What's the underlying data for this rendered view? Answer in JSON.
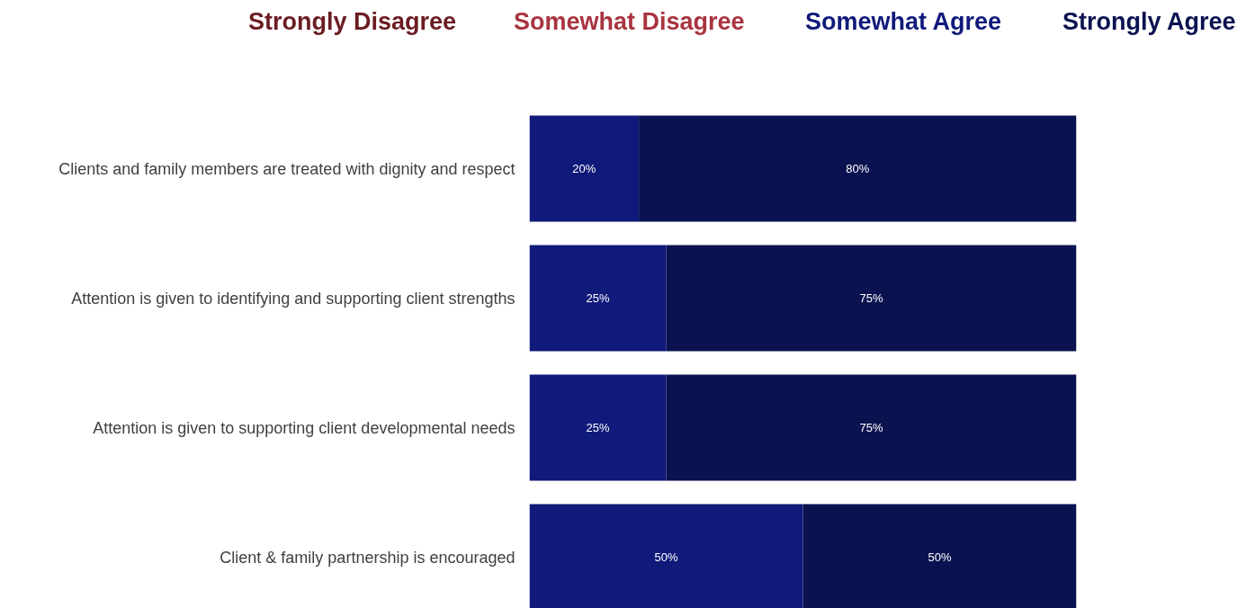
{
  "chart_data": {
    "type": "bar",
    "orientation": "horizontal",
    "stacked": true,
    "categories": [
      "Clients and family members are treated with dignity and respect",
      "Attention is given to identifying and supporting client strengths",
      "Attention is given to supporting client developmental needs",
      "Client & family partnership is encouraged"
    ],
    "series": [
      {
        "name": "Strongly Disagree",
        "color": "#6b1c22",
        "values": [
          0,
          0,
          0,
          0
        ],
        "value_labels": [
          null,
          null,
          null,
          null
        ]
      },
      {
        "name": "Somewhat Disagree",
        "color": "#a8343f",
        "values": [
          0,
          0,
          0,
          0
        ],
        "value_labels": [
          null,
          null,
          null,
          null
        ]
      },
      {
        "name": "Somewhat Agree",
        "color": "#101a7a",
        "values": [
          20,
          25,
          25,
          50
        ],
        "value_labels": [
          "20%",
          "25%",
          "25%",
          "50%"
        ]
      },
      {
        "name": "Strongly Agree",
        "color": "#0b1250",
        "values": [
          80,
          75,
          75,
          50
        ],
        "value_labels": [
          "80%",
          "75%",
          "75%",
          "50%"
        ]
      }
    ],
    "xlim": [
      0,
      100
    ],
    "tick_labels": "y",
    "grid": false
  }
}
